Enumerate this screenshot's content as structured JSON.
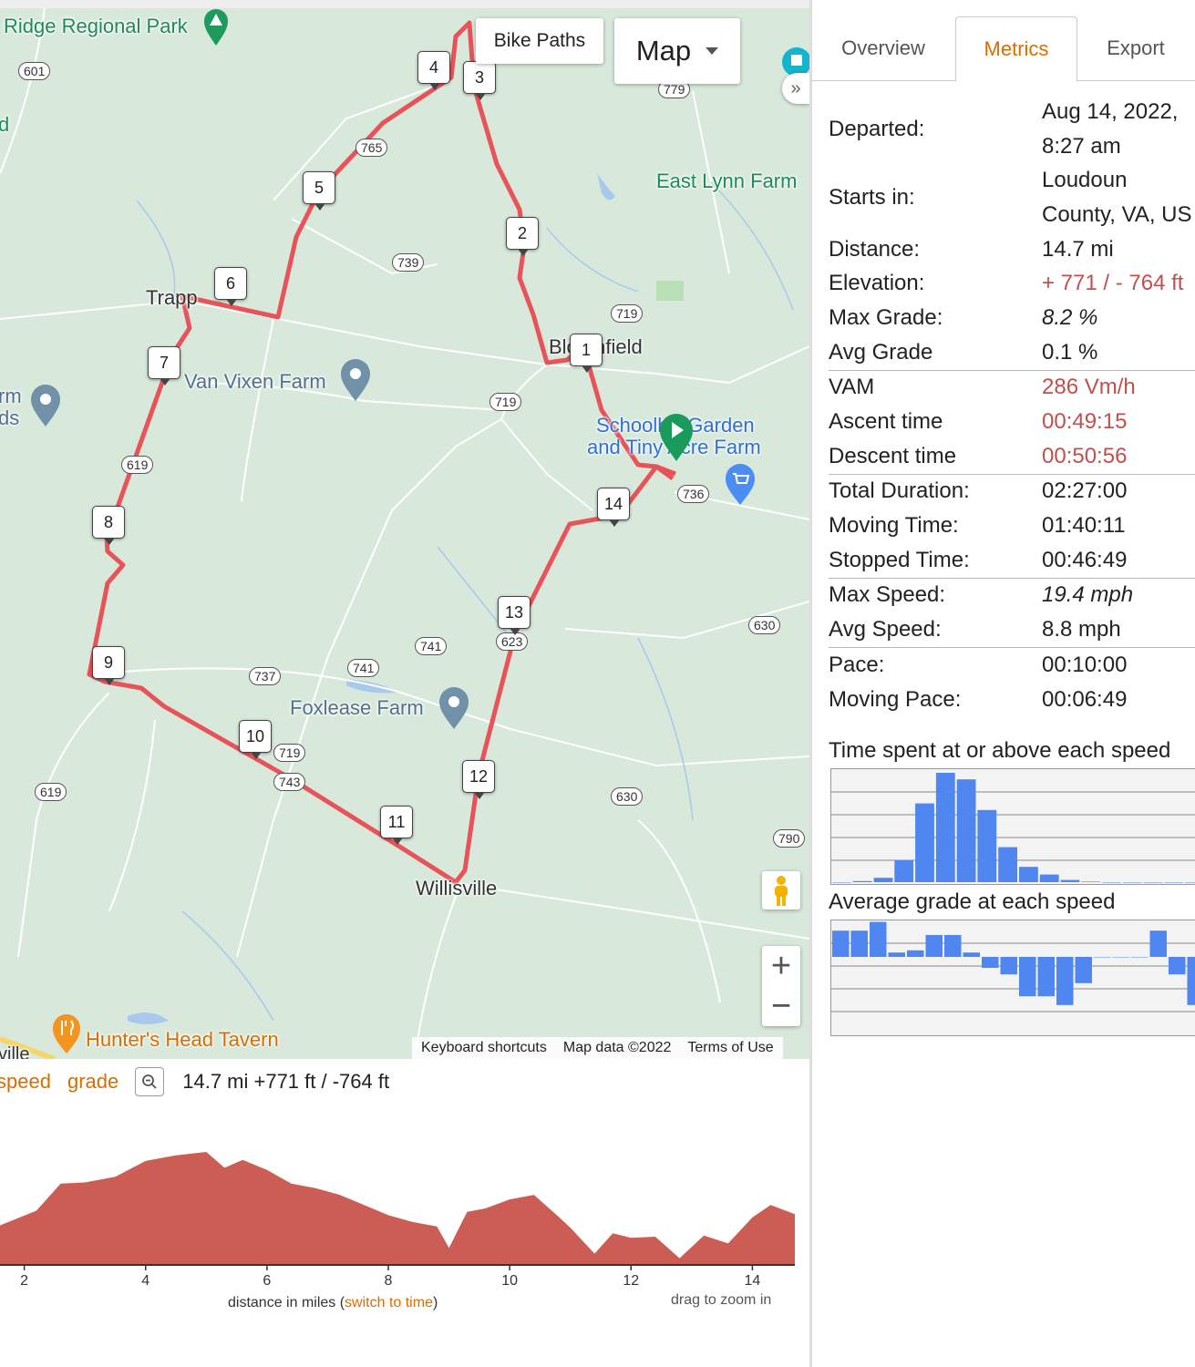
{
  "map": {
    "places": [
      {
        "id": "ridge-park",
        "text": "Ridge Regional Park"
      },
      {
        "id": "east-lynn-farm",
        "text": "East Lynn Farm"
      },
      {
        "id": "trapp",
        "text": "Trapp"
      },
      {
        "id": "van-vixen-farm",
        "text": "Van Vixen Farm"
      },
      {
        "id": "bloomfield",
        "text": "Bloomfield"
      },
      {
        "id": "school-garden-1",
        "text": "Schoolhill Garden"
      },
      {
        "id": "school-garden-2",
        "text": "and Tiny Acre Farm"
      },
      {
        "id": "foxlease-farm",
        "text": "Foxlease Farm"
      },
      {
        "id": "willisville",
        "text": "Willisville"
      },
      {
        "id": "hunters-head",
        "text": "Hunter's Head Tavern"
      },
      {
        "id": "edge-rm",
        "text": "rm"
      },
      {
        "id": "edge-ds",
        "text": "ds"
      },
      {
        "id": "edge-d",
        "text": "d"
      },
      {
        "id": "edge-ville",
        "text": "ville"
      }
    ],
    "road_shields": [
      "601",
      "779",
      "765",
      "739",
      "719",
      "719",
      "619",
      "736",
      "741",
      "741",
      "737",
      "623",
      "630",
      "719",
      "743",
      "630",
      "619",
      "790"
    ],
    "waypoints": [
      "1",
      "2",
      "3",
      "4",
      "5",
      "6",
      "7",
      "8",
      "9",
      "10",
      "11",
      "12",
      "13",
      "14"
    ],
    "controls": {
      "bike_paths": "Bike Paths",
      "map_type": "Map",
      "collapse": "»",
      "zoom_in": "+",
      "zoom_out": "−"
    },
    "attribution": {
      "shortcuts": "Keyboard shortcuts",
      "data": "Map data ©2022",
      "terms": "Terms of Use"
    },
    "colors": {
      "route": "#e8535a",
      "start": "#1a9b5c",
      "land": "#d8e9dc"
    }
  },
  "elevation": {
    "toggle_speed": "speed",
    "toggle_grade": "grade",
    "summary": "14.7 mi +771 ft / -764 ft",
    "x_ticks": [
      "2",
      "4",
      "6",
      "8",
      "10",
      "12",
      "14"
    ],
    "xlabel_prefix": "distance in miles (",
    "xlabel_link": "switch to time",
    "xlabel_suffix": ")",
    "hint": "drag to zoom in",
    "color": "#cc5d55"
  },
  "panel": {
    "tabs": [
      "Overview",
      "Metrics",
      "Export"
    ],
    "active_tab": "Metrics",
    "metrics": {
      "departed_label": "Departed:",
      "departed_1": "Aug 14, 2022,",
      "departed_2": "8:27 am",
      "starts_label": "Starts in:",
      "starts_1": "Loudoun",
      "starts_2": "County, VA, US",
      "distance_label": "Distance:",
      "distance": "14.7 mi",
      "elevation_label": "Elevation:",
      "elevation": "+ 771 / - 764 ft",
      "maxgrade_label": "Max Grade:",
      "maxgrade": "8.2 %",
      "avggrade_label": "Avg Grade",
      "avggrade": "0.1 %",
      "vam_label": "VAM",
      "vam": "286 Vm/h",
      "ascent_label": "Ascent time",
      "ascent": "00:49:15",
      "descent_label": "Descent time",
      "descent": "00:50:56",
      "total_label": "Total Duration:",
      "total": "02:27:00",
      "moving_label": "Moving Time:",
      "moving": "01:40:11",
      "stopped_label": "Stopped Time:",
      "stopped": "00:46:49",
      "maxspeed_label": "Max Speed:",
      "maxspeed": "19.4 mph",
      "avgspeed_label": "Avg Speed:",
      "avgspeed": "8.8 mph",
      "pace_label": "Pace:",
      "pace": "00:10:00",
      "movingpace_label": "Moving Pace:",
      "movingpace": "00:06:49"
    },
    "speed_hist_title": "Time spent at or above each speed",
    "grade_hist_title": "Average grade at each speed"
  },
  "chart_data": [
    {
      "type": "area",
      "title": "",
      "xlabel": "distance in miles",
      "ylabel": "",
      "x": [
        1.6,
        2.2,
        2.6,
        3.0,
        3.5,
        4.0,
        4.5,
        5.0,
        5.3,
        5.6,
        6.0,
        6.4,
        6.8,
        7.2,
        7.6,
        8.0,
        8.4,
        8.8,
        9.0,
        9.3,
        9.6,
        10.0,
        10.4,
        10.8,
        11.0,
        11.4,
        11.7,
        12.0,
        12.4,
        12.8,
        13.2,
        13.6,
        14.0,
        14.3,
        14.7
      ],
      "y": [
        0.35,
        0.48,
        0.72,
        0.73,
        0.78,
        0.92,
        0.97,
        1.0,
        0.86,
        0.93,
        0.84,
        0.72,
        0.68,
        0.62,
        0.53,
        0.44,
        0.38,
        0.34,
        0.15,
        0.47,
        0.5,
        0.58,
        0.62,
        0.43,
        0.33,
        0.1,
        0.28,
        0.24,
        0.25,
        0.06,
        0.26,
        0.19,
        0.42,
        0.53,
        0.45
      ],
      "xlim": [
        1.6,
        14.7
      ],
      "x_ticks": [
        2,
        4,
        6,
        8,
        10,
        12,
        14
      ],
      "grid": false
    },
    {
      "type": "bar",
      "title": "Time spent at or above each speed",
      "values": [
        0.0,
        0.01,
        0.04,
        0.2,
        0.72,
        1.0,
        0.94,
        0.66,
        0.32,
        0.14,
        0.07,
        0.02,
        0.005,
        0.0,
        0.0,
        0.0,
        0.0,
        0.0
      ],
      "color": "#4f86f0"
    },
    {
      "type": "bar",
      "title": "Average grade at each speed",
      "values": [
        0.6,
        0.6,
        0.8,
        0.1,
        0.15,
        0.5,
        0.5,
        0.1,
        -0.25,
        -0.4,
        -0.9,
        -0.9,
        -1.1,
        -0.6,
        0.0,
        0.0,
        0.0,
        0.6,
        -0.4,
        -1.1
      ],
      "color": "#4f86f0"
    }
  ]
}
